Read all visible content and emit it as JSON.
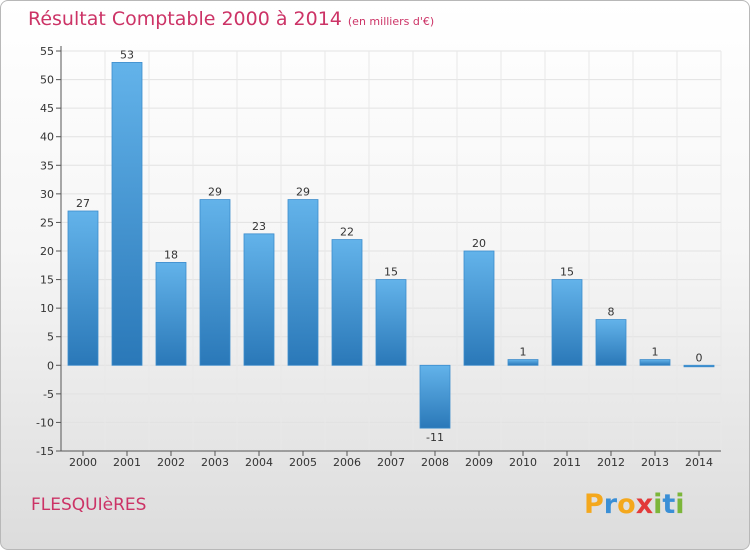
{
  "title": "Résultat Comptable 2000 à 2014",
  "unit": "(en milliers d'€)",
  "commune": "FLESQUIèRES",
  "logo": {
    "letters": [
      "P",
      "r",
      "o",
      "x",
      "i",
      "t",
      "i"
    ],
    "colors": [
      "#f4a81d",
      "#3a8fd6",
      "#f4a81d",
      "#e23a3a",
      "#7cb63a",
      "#3a8fd6",
      "#7cb63a"
    ]
  },
  "colors": {
    "bar_top": "#63b3ea",
    "bar_bottom": "#2a78b8",
    "accent": "#cc3366"
  },
  "chart_data": {
    "type": "bar",
    "title": "Résultat Comptable 2000 à 2014",
    "xlabel": "",
    "ylabel": "",
    "categories": [
      "2000",
      "2001",
      "2002",
      "2003",
      "2004",
      "2005",
      "2006",
      "2007",
      "2008",
      "2009",
      "2010",
      "2011",
      "2012",
      "2013",
      "2014"
    ],
    "values": [
      27,
      53,
      18,
      29,
      23,
      29,
      22,
      15,
      -11,
      20,
      1,
      15,
      8,
      1,
      0
    ],
    "labels": [
      "27",
      "53",
      "18",
      "29",
      "23",
      "29",
      "22",
      "15",
      "-11",
      "20",
      "1",
      "15",
      "8",
      "1",
      "0"
    ],
    "ylim": [
      -15,
      55
    ],
    "yticks": [
      55,
      50,
      45,
      40,
      35,
      30,
      25,
      20,
      15,
      10,
      5,
      0,
      -5,
      -10,
      -15
    ],
    "ytick_labels": [
      "55",
      "50",
      "45",
      "40",
      "35",
      "30",
      "25",
      "20",
      "15",
      "10",
      "5",
      "0",
      "-5",
      "-10",
      "-15"
    ],
    "grid": true
  }
}
